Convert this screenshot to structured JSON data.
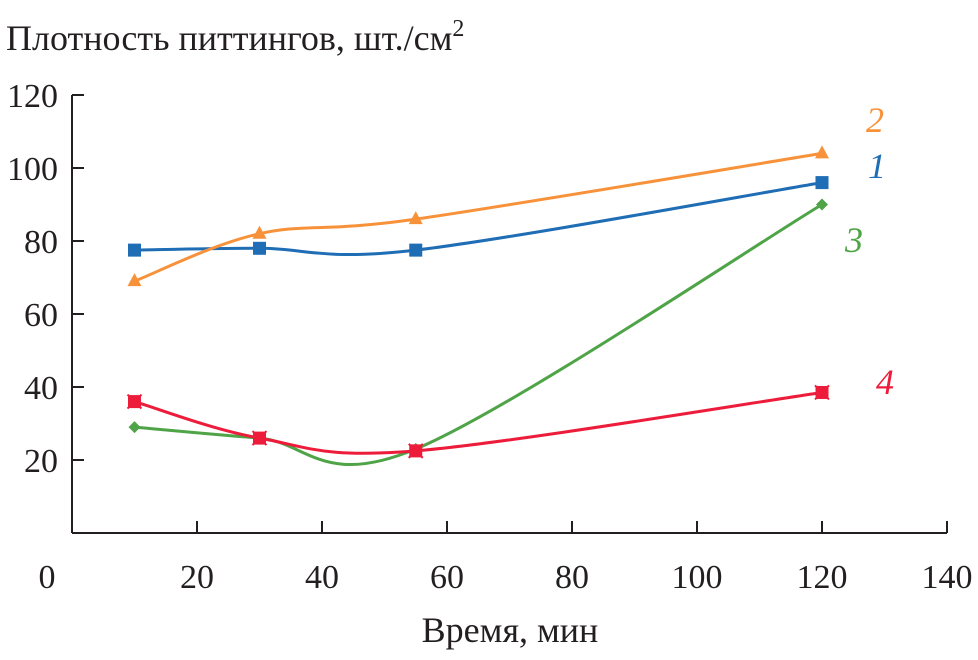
{
  "chart_data": {
    "type": "line",
    "title": "",
    "ylabel": "Плотность питтингов, шт./см",
    "ylabel_superscript": "2",
    "xlabel": "Время, мин",
    "xlim": [
      0,
      140
    ],
    "ylim": [
      0,
      120
    ],
    "xticks": [
      "0",
      "20",
      "40",
      "60",
      "80",
      "100",
      "120",
      "140"
    ],
    "yticks": [
      "20",
      "40",
      "60",
      "80",
      "100",
      "120"
    ],
    "grid": false,
    "x": [
      10,
      30,
      55,
      120
    ],
    "series": [
      {
        "name": "1",
        "color": "#1f6db5",
        "marker": "square",
        "values": [
          77.5,
          78,
          77.5,
          96
        ]
      },
      {
        "name": "2",
        "color": "#f7923a",
        "marker": "triangle",
        "values": [
          69,
          82,
          86,
          104
        ]
      },
      {
        "name": "3",
        "color": "#4ea447",
        "marker": "diamond",
        "values": [
          29,
          26,
          23,
          90
        ]
      },
      {
        "name": "4",
        "color": "#ed1c3a",
        "marker": "square-star",
        "values": [
          36,
          26,
          22.5,
          38.5
        ]
      }
    ]
  }
}
